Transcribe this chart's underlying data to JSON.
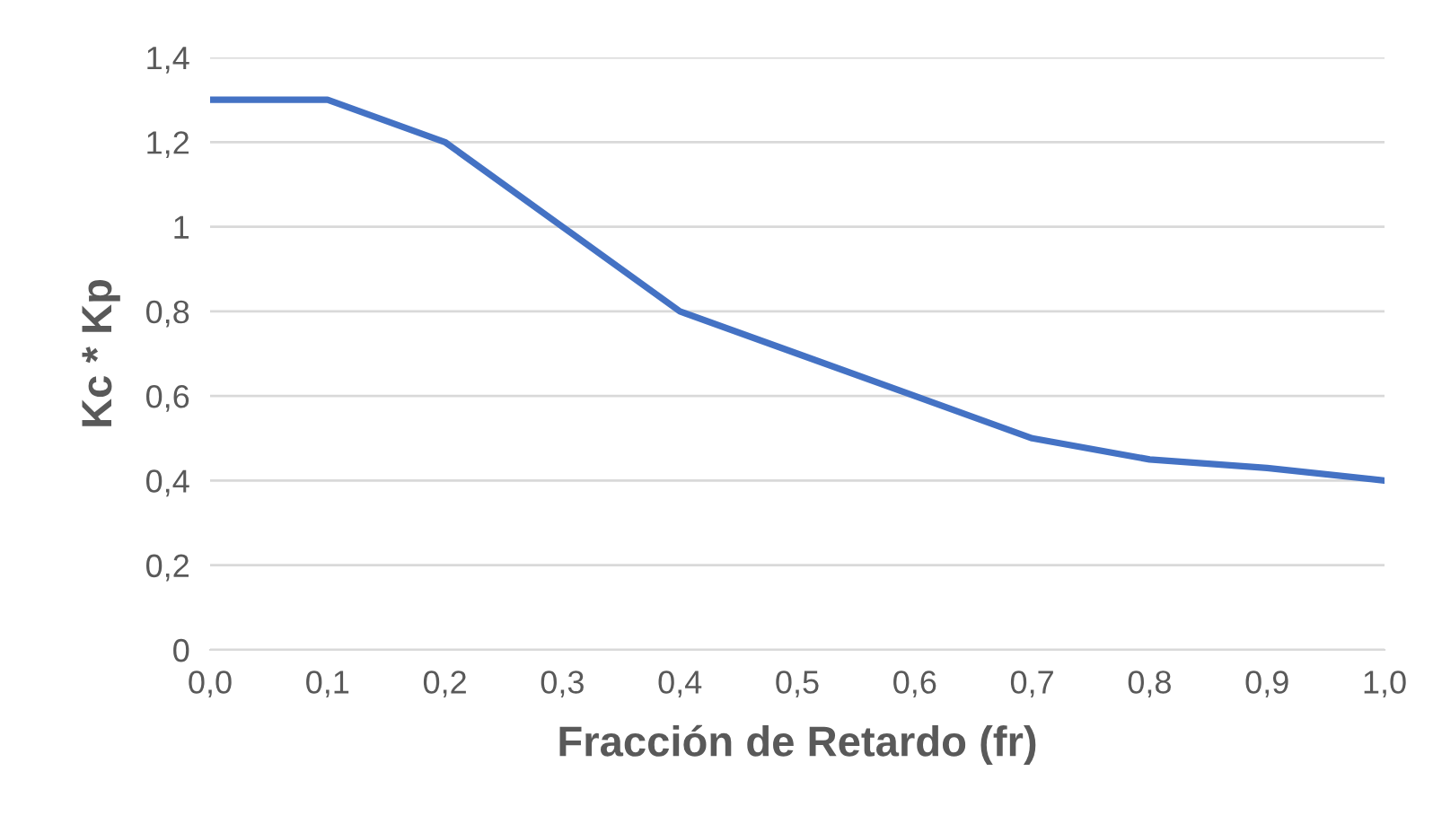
{
  "chart_data": {
    "type": "line",
    "xlabel": "Fracción de Retardo (fr)",
    "ylabel": "Kc * Kp",
    "x": [
      0.0,
      0.1,
      0.2,
      0.3,
      0.4,
      0.5,
      0.6,
      0.7,
      0.8,
      0.9,
      1.0
    ],
    "series": [
      {
        "color": "#4472c4",
        "values": [
          1.3,
          1.3,
          1.2,
          1.0,
          0.8,
          0.7,
          0.6,
          0.5,
          0.45,
          0.43,
          0.4
        ]
      }
    ],
    "xlim": [
      0.0,
      1.0
    ],
    "ylim": [
      0,
      1.4
    ],
    "xticks": [
      {
        "value": 0.0,
        "label": "0,0"
      },
      {
        "value": 0.1,
        "label": "0,1"
      },
      {
        "value": 0.2,
        "label": "0,2"
      },
      {
        "value": 0.3,
        "label": "0,3"
      },
      {
        "value": 0.4,
        "label": "0,4"
      },
      {
        "value": 0.5,
        "label": "0,5"
      },
      {
        "value": 0.6,
        "label": "0,6"
      },
      {
        "value": 0.7,
        "label": "0,7"
      },
      {
        "value": 0.8,
        "label": "0,8"
      },
      {
        "value": 0.9,
        "label": "0,9"
      },
      {
        "value": 1.0,
        "label": "1,0"
      }
    ],
    "yticks": [
      0,
      {
        "value": 0.2,
        "label": "0,2"
      },
      {
        "value": 0.4,
        "label": "0,4"
      },
      {
        "value": 0.6,
        "label": "0,6"
      },
      {
        "value": 0.8,
        "label": "0,8"
      },
      1,
      {
        "value": 1.2,
        "label": "1,2"
      },
      {
        "value": 1.4,
        "label": "1,4"
      }
    ],
    "grid": "y",
    "legend": false,
    "marker": "none",
    "line_style": "solid"
  }
}
